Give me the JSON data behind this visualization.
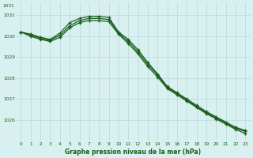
{
  "title": "Graphe pression niveau de la mer (hPa)",
  "background_color": "#d8f0f0",
  "grid_color": "#b8dada",
  "line_color": "#1a5c1a",
  "x_values": [
    0,
    1,
    2,
    3,
    4,
    5,
    6,
    7,
    8,
    9,
    10,
    11,
    12,
    13,
    14,
    15,
    16,
    17,
    18,
    19,
    20,
    21,
    22,
    23
  ],
  "x_labels": [
    "0",
    "1",
    "2",
    "3",
    "4",
    "5",
    "6",
    "7",
    "8",
    "9",
    "10",
    "11",
    "12",
    "13",
    "14",
    "15",
    "16",
    "17",
    "18",
    "19",
    "20",
    "21",
    "22",
    "23"
  ],
  "series1": [
    1030.2,
    1030.1,
    1029.95,
    1029.85,
    1030.15,
    1030.65,
    1030.85,
    1030.95,
    1030.95,
    1030.9,
    1030.2,
    1029.85,
    1029.35,
    1028.75,
    1028.2,
    1027.6,
    1027.3,
    1027.0,
    1026.7,
    1026.4,
    1026.15,
    1025.9,
    1025.65,
    1025.5
  ],
  "series2": [
    1030.2,
    1030.05,
    1029.9,
    1029.8,
    1030.05,
    1030.5,
    1030.75,
    1030.85,
    1030.85,
    1030.8,
    1030.15,
    1029.75,
    1029.25,
    1028.65,
    1028.15,
    1027.55,
    1027.25,
    1026.95,
    1026.65,
    1026.35,
    1026.1,
    1025.85,
    1025.6,
    1025.45
  ],
  "series3": [
    1030.2,
    1030.0,
    1029.85,
    1029.75,
    1029.95,
    1030.4,
    1030.65,
    1030.75,
    1030.75,
    1030.7,
    1030.1,
    1029.65,
    1029.15,
    1028.55,
    1028.05,
    1027.5,
    1027.2,
    1026.9,
    1026.6,
    1026.3,
    1026.05,
    1025.8,
    1025.55,
    1025.35
  ],
  "ylim": [
    1025.0,
    1031.6
  ],
  "yticks": [
    1026,
    1027,
    1028,
    1029,
    1030,
    1031
  ],
  "xlim": [
    -0.5,
    23.5
  ]
}
